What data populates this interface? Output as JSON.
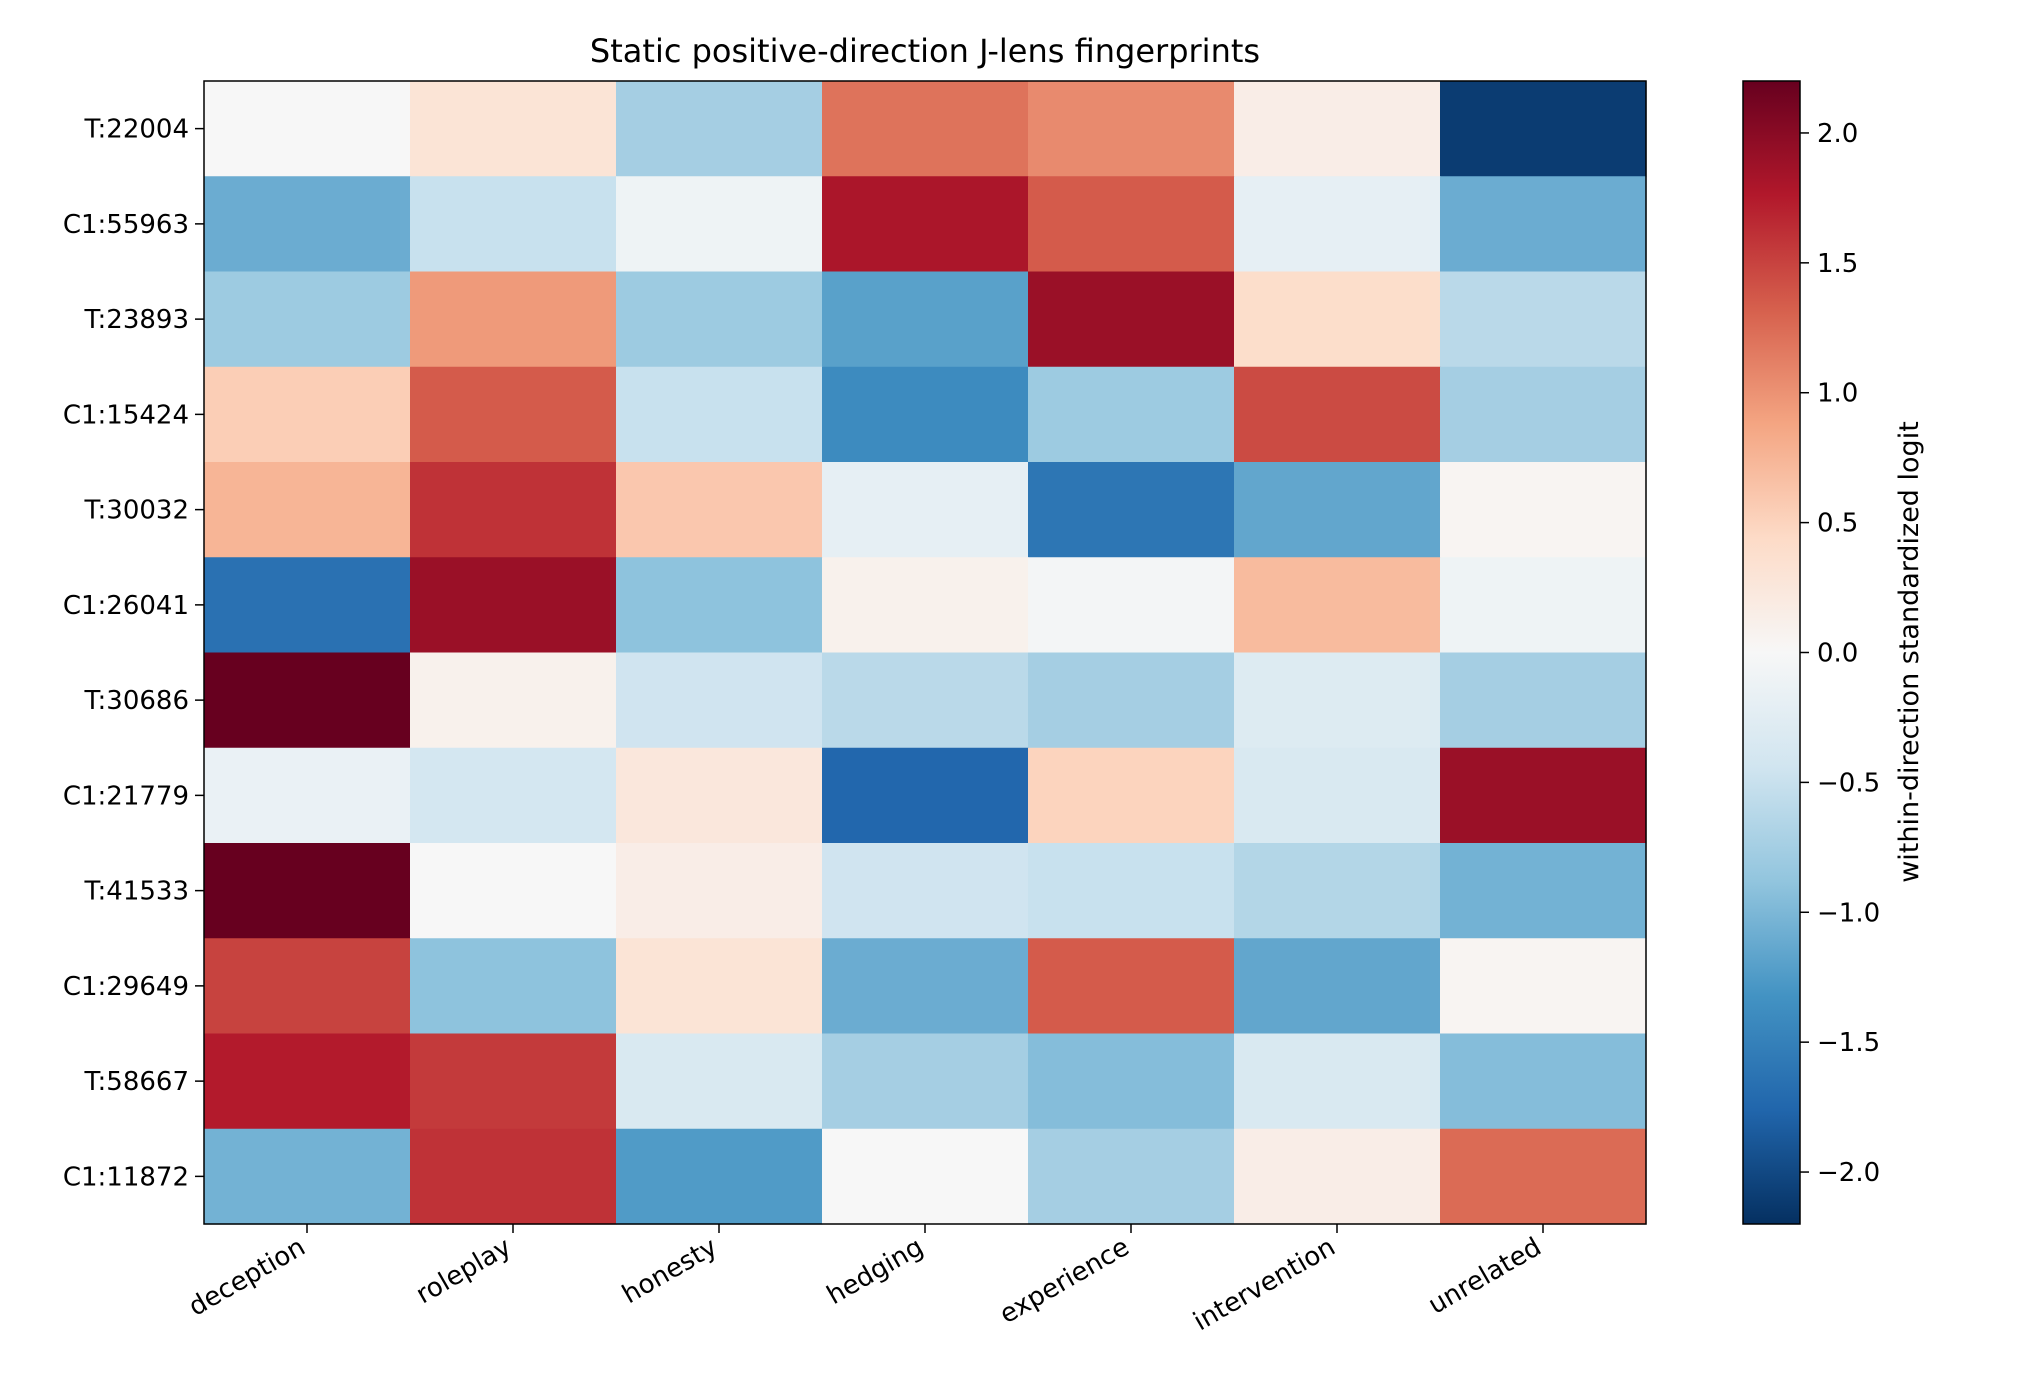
{
  "chart_data": {
    "type": "heatmap",
    "title": "Static positive-direction J-lens fingerprints",
    "xlabel": "",
    "ylabel": "",
    "columns": [
      "deception",
      "roleplay",
      "honesty",
      "hedging",
      "experience",
      "intervention",
      "unrelated"
    ],
    "rows": [
      "T:22004",
      "C1:55963",
      "T:23893",
      "C1:15424",
      "T:30032",
      "C1:26041",
      "T:30686",
      "C1:21779",
      "T:41533",
      "C1:29649",
      "T:58667",
      "C1:11872"
    ],
    "values": [
      [
        0.0,
        0.3,
        -0.75,
        1.2,
        1.05,
        0.15,
        -2.1
      ],
      [
        -1.1,
        -0.5,
        -0.1,
        1.8,
        1.35,
        -0.2,
        -1.1
      ],
      [
        -0.8,
        0.95,
        -0.8,
        -1.2,
        1.9,
        0.4,
        -0.6
      ],
      [
        0.55,
        1.35,
        -0.5,
        -1.4,
        -0.8,
        1.45,
        -0.75
      ],
      [
        0.75,
        1.6,
        0.6,
        -0.2,
        -1.6,
        -1.15,
        0.05
      ],
      [
        -1.65,
        1.9,
        -0.9,
        0.1,
        -0.05,
        0.7,
        -0.1
      ],
      [
        2.2,
        0.1,
        -0.45,
        -0.6,
        -0.75,
        -0.3,
        -0.75
      ],
      [
        -0.15,
        -0.4,
        0.25,
        -1.75,
        0.5,
        -0.35,
        1.9
      ],
      [
        2.2,
        0.0,
        0.15,
        -0.45,
        -0.5,
        -0.65,
        -1.05
      ],
      [
        1.5,
        -0.9,
        0.3,
        -1.1,
        1.35,
        -1.15,
        0.05
      ],
      [
        1.75,
        1.55,
        -0.35,
        -0.75,
        -0.95,
        -0.35,
        -0.95
      ],
      [
        -1.05,
        1.6,
        -1.25,
        0.0,
        -0.75,
        0.15,
        1.25
      ]
    ],
    "vmin": -2.2,
    "vmax": 2.2,
    "colormap": "RdBu_r",
    "colorbar": {
      "label": "within-direction standardized logit",
      "ticks": [
        2.0,
        1.5,
        1.0,
        0.5,
        0.0,
        -0.5,
        -1.0,
        -1.5,
        -2.0
      ],
      "tick_labels": [
        "2.0",
        "1.5",
        "1.0",
        "0.5",
        "0.0",
        "−0.5",
        "−1.0",
        "−1.5",
        "−2.0"
      ]
    }
  }
}
